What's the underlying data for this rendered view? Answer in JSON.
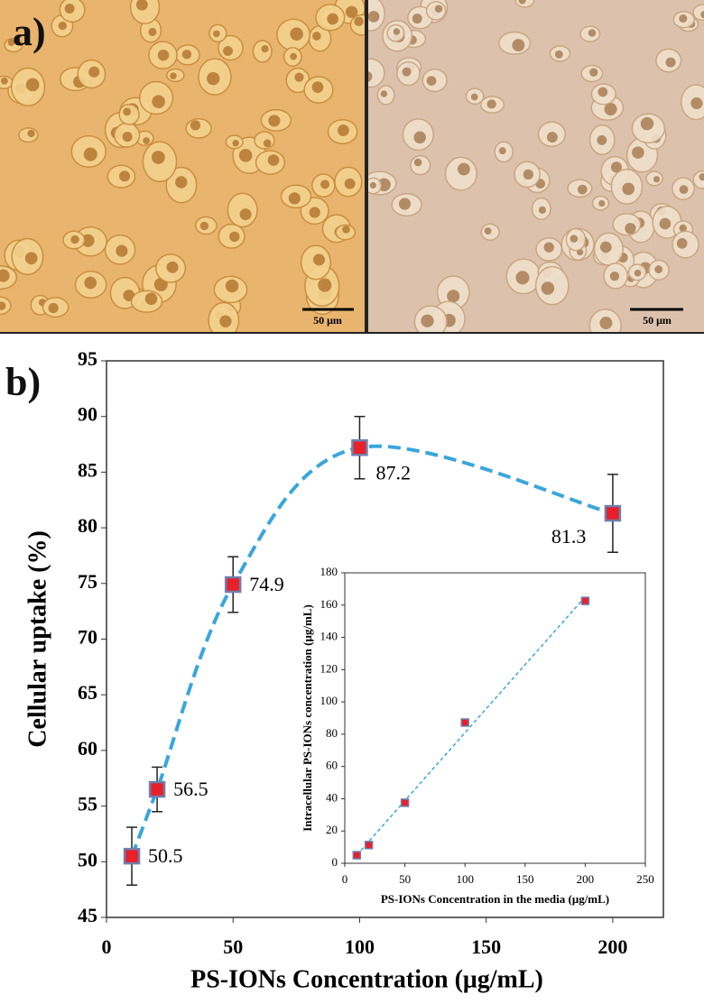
{
  "panel_a": {
    "label": "a)",
    "images": [
      {
        "scale_bar": "50 μm"
      },
      {
        "scale_bar": "50 μm"
      }
    ]
  },
  "panel_b": {
    "label": "b)"
  },
  "chart_data": [
    {
      "type": "scatter",
      "xlabel": "PS-IONs Concentration (μg/mL)",
      "ylabel": "Cellular uptake (%)",
      "x": [
        10,
        20,
        50,
        100,
        200
      ],
      "values": [
        50.5,
        56.5,
        74.9,
        87.2,
        81.3
      ],
      "errors": [
        2.6,
        2,
        2.5,
        2.8,
        3.5
      ],
      "color": "#e8202a",
      "edge_color": "#6f7fae",
      "trendline": "smooth",
      "trend_color": "#3aa6dc",
      "xlim": [
        0,
        220
      ],
      "xticks": [
        0,
        50,
        100,
        150,
        200
      ],
      "ylim": [
        45,
        95
      ],
      "yticks": [
        45,
        50,
        55,
        60,
        65,
        70,
        75,
        80,
        85,
        90,
        95
      ]
    },
    {
      "type": "scatter",
      "xlabel": "PS-IONs Concentration in the media (μg/mL)",
      "ylabel": "Intracellular PS-IONs concentration (μg/mL)",
      "x": [
        10,
        20,
        50,
        100,
        200
      ],
      "values": [
        5,
        11.3,
        37.5,
        87.2,
        162.6
      ],
      "color": "#e8202a",
      "edge_color": "#6f7fae",
      "trendline": "linear",
      "trend_color": "#3aa6dc",
      "xlim": [
        0,
        250
      ],
      "xticks": [
        0,
        50,
        100,
        150,
        200,
        250
      ],
      "ylim": [
        0,
        180
      ],
      "yticks": [
        0,
        20,
        40,
        60,
        80,
        100,
        120,
        140,
        160,
        180
      ]
    }
  ]
}
